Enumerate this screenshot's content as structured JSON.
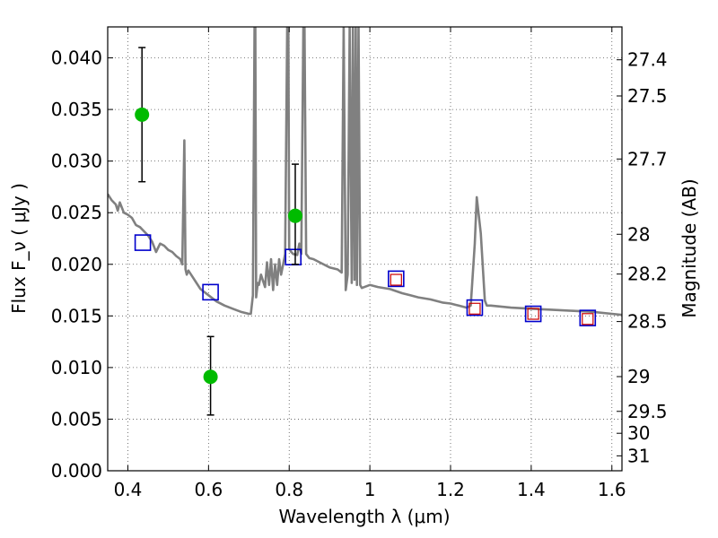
{
  "chart_data": {
    "type": "scatter",
    "xlabel": "Wavelength  λ (μm)",
    "ylabel": "Flux  F_ν  ( μJy )",
    "ylabel_right": "Magnitude (AB)",
    "xlim": [
      0.35,
      1.625
    ],
    "ylim": [
      0.0,
      0.043
    ],
    "grid": true,
    "x_ticks": [
      0.4,
      0.6,
      0.8,
      1.0,
      1.2,
      1.4,
      1.6
    ],
    "x_tick_labels": [
      "0.4",
      "0.6",
      "0.8",
      "1",
      "1.2",
      "1.4",
      "1.6"
    ],
    "y_ticks": [
      0.0,
      0.005,
      0.01,
      0.015,
      0.02,
      0.025,
      0.03,
      0.035,
      0.04
    ],
    "y_tick_labels": [
      "0.000",
      "0.005",
      "0.010",
      "0.015",
      "0.020",
      "0.025",
      "0.030",
      "0.035",
      "0.040"
    ],
    "y2_ticks": [
      27.4,
      27.5,
      27.7,
      28,
      28.2,
      28.5,
      29,
      29.5,
      30,
      31
    ],
    "y2_tick_labels": [
      "27.4",
      "27.5",
      "27.7",
      "28",
      "28.2",
      "28.5",
      "29",
      "29.5",
      "30",
      "31"
    ],
    "colors": {
      "template": "#808080",
      "observed": "#00bb00",
      "model_box": "#0000cc",
      "model_small_box": "#cc0000",
      "errorbar": "#000000",
      "grid": "#555555"
    },
    "series": [
      {
        "kind": "template_spectrum",
        "x": [
          0.35,
          0.36,
          0.37,
          0.375,
          0.38,
          0.39,
          0.4,
          0.41,
          0.42,
          0.43,
          0.44,
          0.45,
          0.46,
          0.47,
          0.48,
          0.49,
          0.5,
          0.51,
          0.52,
          0.53,
          0.535,
          0.54,
          0.543,
          0.546,
          0.55,
          0.56,
          0.57,
          0.58,
          0.6,
          0.62,
          0.64,
          0.66,
          0.68,
          0.7,
          0.705,
          0.71,
          0.714,
          0.716,
          0.718,
          0.72,
          0.722,
          0.725,
          0.73,
          0.74,
          0.745,
          0.75,
          0.755,
          0.76,
          0.765,
          0.77,
          0.775,
          0.78,
          0.785,
          0.79,
          0.795,
          0.798,
          0.8,
          0.805,
          0.81,
          0.82,
          0.825,
          0.83,
          0.835,
          0.838,
          0.842,
          0.85,
          0.86,
          0.88,
          0.9,
          0.92,
          0.93,
          0.935,
          0.94,
          0.945,
          0.95,
          0.955,
          0.958,
          0.962,
          0.965,
          0.968,
          0.972,
          0.976,
          0.98,
          1.0,
          1.02,
          1.05,
          1.08,
          1.1,
          1.12,
          1.15,
          1.18,
          1.2,
          1.22,
          1.24,
          1.25,
          1.26,
          1.265,
          1.275,
          1.285,
          1.29,
          1.3,
          1.35,
          1.4,
          1.45,
          1.5,
          1.55,
          1.6,
          1.625
        ],
        "y": [
          0.0268,
          0.0262,
          0.0258,
          0.0252,
          0.026,
          0.025,
          0.0248,
          0.0245,
          0.0238,
          0.0236,
          0.0232,
          0.0228,
          0.0222,
          0.0212,
          0.022,
          0.0218,
          0.0214,
          0.0212,
          0.0208,
          0.0205,
          0.02,
          0.032,
          0.0195,
          0.019,
          0.0194,
          0.0188,
          0.0182,
          0.0176,
          0.017,
          0.0164,
          0.016,
          0.0157,
          0.0154,
          0.0152,
          0.0152,
          0.017,
          0.043,
          0.043,
          0.0168,
          0.0175,
          0.0182,
          0.018,
          0.019,
          0.0178,
          0.0202,
          0.018,
          0.0205,
          0.0175,
          0.02,
          0.018,
          0.0205,
          0.019,
          0.02,
          0.021,
          0.043,
          0.043,
          0.0215,
          0.0212,
          0.021,
          0.0209,
          0.022,
          0.021,
          0.043,
          0.043,
          0.021,
          0.0206,
          0.0205,
          0.0201,
          0.0197,
          0.0195,
          0.0192,
          0.043,
          0.0175,
          0.019,
          0.043,
          0.0182,
          0.043,
          0.0185,
          0.043,
          0.018,
          0.043,
          0.018,
          0.0177,
          0.018,
          0.0178,
          0.0176,
          0.0172,
          0.017,
          0.0168,
          0.0166,
          0.0163,
          0.0162,
          0.016,
          0.0158,
          0.016,
          0.022,
          0.0265,
          0.023,
          0.0165,
          0.016,
          0.016,
          0.0158,
          0.0157,
          0.0156,
          0.0155,
          0.0154,
          0.0152,
          0.0151
        ]
      },
      {
        "kind": "observed_with_errors",
        "x": [
          0.435,
          0.605,
          0.815
        ],
        "y": [
          0.0345,
          0.0091,
          0.0247
        ],
        "yerr_low": [
          0.0065,
          0.0037,
          0.0047
        ],
        "yerr_high": [
          0.0065,
          0.0039,
          0.005
        ]
      },
      {
        "kind": "model_photometry_large_blue_squares",
        "x": [
          0.437,
          0.605,
          0.81,
          1.065,
          1.26,
          1.405,
          1.54
        ],
        "y": [
          0.0221,
          0.0173,
          0.0207,
          0.0186,
          0.0158,
          0.0152,
          0.0148
        ]
      },
      {
        "kind": "model_photometry_small_red_squares",
        "x": [
          1.065,
          1.26,
          1.405,
          1.54
        ],
        "y": [
          0.0185,
          0.0157,
          0.0152,
          0.0147
        ]
      }
    ]
  }
}
